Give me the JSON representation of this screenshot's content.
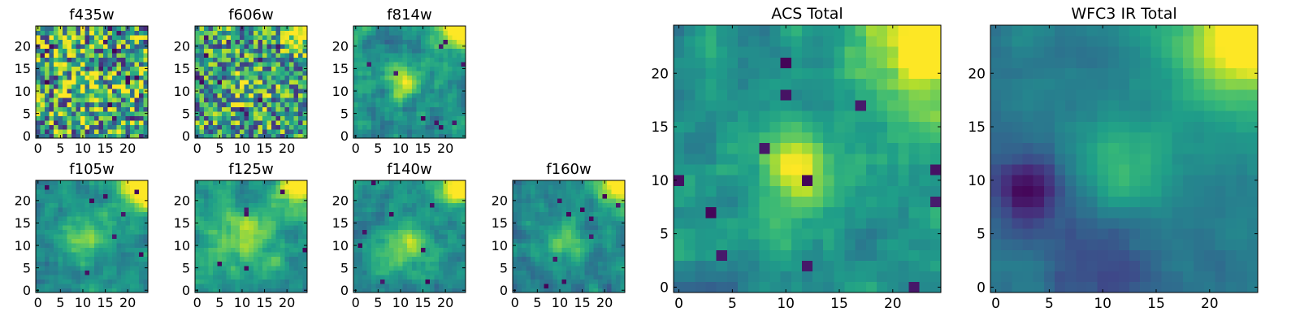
{
  "figure": {
    "colormap": "viridis",
    "tick_color": "#000000",
    "frame_color": "#000000",
    "background": "#ffffff"
  },
  "chart_data": [
    {
      "type": "heatmap",
      "title": "f435w",
      "grid_size": 25,
      "xlim": [
        -0.5,
        24.5
      ],
      "ylim": [
        -0.5,
        24.5
      ],
      "xticks": [
        0,
        5,
        10,
        15,
        20
      ],
      "yticks": [
        0,
        5,
        10,
        15,
        20
      ],
      "pattern": {
        "seed": 11,
        "noise": 0.7,
        "base": 0.58,
        "blob": [
          11,
          11,
          4,
          0.15
        ],
        "corner": [
          24,
          24,
          4,
          0.0
        ],
        "holes": 14
      }
    },
    {
      "type": "heatmap",
      "title": "f606w",
      "grid_size": 25,
      "xlim": [
        -0.5,
        24.5
      ],
      "ylim": [
        -0.5,
        24.5
      ],
      "xticks": [
        0,
        5,
        10,
        15,
        20
      ],
      "yticks": [
        0,
        5,
        10,
        15,
        20
      ],
      "pattern": {
        "seed": 23,
        "noise": 0.6,
        "base": 0.55,
        "blob": [
          11,
          11,
          3,
          0.2
        ],
        "corner": [
          24,
          24,
          3.5,
          0.6
        ],
        "holes": 10
      }
    },
    {
      "type": "heatmap",
      "title": "f814w",
      "grid_size": 25,
      "xlim": [
        -0.5,
        24.5
      ],
      "ylim": [
        -0.5,
        24.5
      ],
      "xticks": [
        0,
        5,
        10,
        15,
        20
      ],
      "yticks": [
        0,
        5,
        10,
        15,
        20
      ],
      "pattern": {
        "seed": 37,
        "noise": 0.55,
        "base": 0.5,
        "blob": [
          11,
          12,
          2.5,
          0.45
        ],
        "corner": [
          24,
          24,
          4,
          0.7
        ],
        "holes": 9
      }
    },
    {
      "type": "heatmap",
      "title": "f105w",
      "grid_size": 25,
      "xlim": [
        -0.5,
        24.5
      ],
      "ylim": [
        -0.5,
        24.5
      ],
      "xticks": [
        0,
        5,
        10,
        15,
        20
      ],
      "yticks": [
        0,
        5,
        10,
        15,
        20
      ],
      "pattern": {
        "seed": 41,
        "noise": 0.42,
        "base": 0.48,
        "blob": [
          11,
          12,
          4,
          0.3
        ],
        "corner": [
          24,
          24,
          4,
          0.75
        ],
        "holes": 8
      }
    },
    {
      "type": "heatmap",
      "title": "f125w",
      "grid_size": 25,
      "xlim": [
        -0.5,
        24.5
      ],
      "ylim": [
        -0.5,
        24.5
      ],
      "xticks": [
        0,
        5,
        10,
        15,
        20
      ],
      "yticks": [
        0,
        5,
        10,
        15,
        20
      ],
      "pattern": {
        "seed": 53,
        "noise": 0.42,
        "base": 0.55,
        "blob": [
          11,
          12,
          4,
          0.3
        ],
        "corner": [
          24,
          24,
          4,
          0.65
        ],
        "holes": 6
      }
    },
    {
      "type": "heatmap",
      "title": "f140w",
      "grid_size": 25,
      "xlim": [
        -0.5,
        24.5
      ],
      "ylim": [
        -0.5,
        24.5
      ],
      "xticks": [
        0,
        5,
        10,
        15,
        20
      ],
      "yticks": [
        0,
        5,
        10,
        15,
        20
      ],
      "pattern": {
        "seed": 67,
        "noise": 0.42,
        "base": 0.5,
        "blob": [
          11,
          10,
          3.5,
          0.35
        ],
        "corner": [
          24,
          24,
          3.5,
          0.7
        ],
        "holes": 8
      }
    },
    {
      "type": "heatmap",
      "title": "f160w",
      "grid_size": 25,
      "xlim": [
        -0.5,
        24.5
      ],
      "ylim": [
        -0.5,
        24.5
      ],
      "xticks": [
        0,
        5,
        10,
        15,
        20
      ],
      "yticks": [
        0,
        5,
        10,
        15,
        20
      ],
      "pattern": {
        "seed": 79,
        "noise": 0.42,
        "base": 0.46,
        "blob": [
          11,
          11,
          3.5,
          0.3
        ],
        "corner": [
          24,
          24,
          3.5,
          0.8
        ],
        "holes": 10
      }
    },
    {
      "type": "heatmap",
      "title": "ACS Total",
      "grid_size": 25,
      "xlim": [
        -0.5,
        24.5
      ],
      "ylim": [
        -0.5,
        24.5
      ],
      "xticks": [
        0,
        5,
        10,
        15,
        20
      ],
      "yticks": [
        0,
        5,
        10,
        15,
        20
      ],
      "pattern": {
        "seed": 97,
        "noise": 0.38,
        "base": 0.52,
        "blob": [
          11,
          11,
          2.2,
          0.5
        ],
        "corner": [
          24,
          24,
          4.5,
          0.7
        ],
        "holes": 12
      }
    },
    {
      "type": "heatmap",
      "title": "WFC3 IR Total",
      "grid_size": 25,
      "xlim": [
        -0.5,
        24.5
      ],
      "ylim": [
        -0.5,
        24.5
      ],
      "xticks": [
        0,
        5,
        10,
        15,
        20
      ],
      "yticks": [
        0,
        5,
        10,
        15,
        20
      ],
      "pattern": {
        "seed": 113,
        "noise": 0.18,
        "base": 0.42,
        "blob": [
          12,
          11,
          3.5,
          0.25
        ],
        "corner": [
          24,
          24,
          5,
          0.75
        ],
        "holes": 0,
        "dark": [
          3,
          9,
          2.5,
          0.4
        ],
        "dark2": [
          10,
          2,
          4,
          0.2
        ]
      }
    }
  ]
}
